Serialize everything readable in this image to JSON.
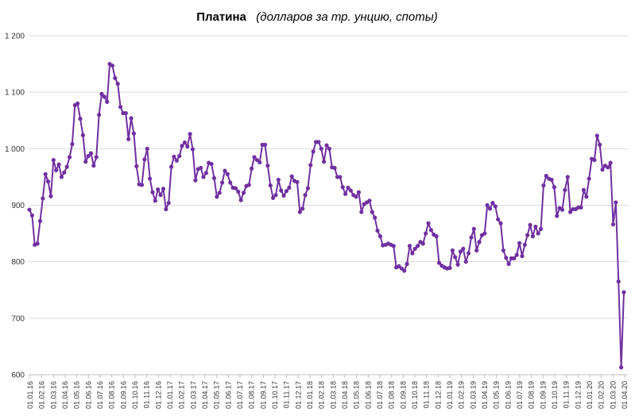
{
  "chart_data": {
    "type": "line",
    "title": "Платина",
    "subtitle": "(долларов за тр. унцию, споты)",
    "xlabel": "",
    "ylabel": "",
    "ylim": [
      600,
      1200
    ],
    "yticks": [
      "600",
      "700",
      "800",
      "900",
      "1 000",
      "1 100",
      "1 200"
    ],
    "grid": true,
    "legend": "none",
    "line_color": "#7030a0",
    "x_tick_labels": [
      "01.01.16",
      "01.02.16",
      "01.03.16",
      "01.04.16",
      "01.05.16",
      "01.06.16",
      "01.07.16",
      "01.08.16",
      "01.09.16",
      "01.10.16",
      "01.11.16",
      "01.12.16",
      "01.01.17",
      "01.02.17",
      "01.03.17",
      "01.04.17",
      "01.05.17",
      "01.06.17",
      "01.07.17",
      "01.08.17",
      "01.09.17",
      "01.10.17",
      "01.11.17",
      "01.12.17",
      "01.01.18",
      "01.02.18",
      "01.03.18",
      "01.04.18",
      "01.05.18",
      "01.06.18",
      "01.07.18",
      "01.08.18",
      "01.09.18",
      "01.10.18",
      "01.11.18",
      "01.12.18",
      "01.01.19",
      "01.02.19",
      "01.03.19",
      "01.04.19",
      "01.05.19",
      "01.06.19",
      "01.07.19",
      "01.08.19",
      "01.09.19",
      "01.10.19",
      "01.11.19",
      "01.12.19",
      "01.01.20",
      "01.02.20",
      "01.03.20",
      "01.04.20"
    ],
    "series": [
      {
        "values": [
          892,
          882,
          830,
          832,
          872,
          912,
          955,
          942,
          916,
          980,
          962,
          972,
          950,
          958,
          968,
          985,
          1008,
          1077,
          1080,
          1053,
          1024,
          977,
          987,
          992,
          970,
          985,
          1060,
          1097,
          1092,
          1083,
          1150,
          1147,
          1125,
          1115,
          1074,
          1063,
          1063,
          1017,
          1054,
          1027,
          969,
          937,
          936,
          981,
          1000,
          947,
          923,
          908,
          928,
          918,
          929,
          893,
          904,
          968,
          986,
          979,
          987,
          1005,
          1011,
          1004,
          1026,
          999,
          944,
          964,
          966,
          950,
          957,
          975,
          973,
          948,
          915,
          922,
          940,
          961,
          955,
          940,
          931,
          930,
          924,
          909,
          922,
          934,
          936,
          965,
          985,
          980,
          976,
          1007,
          1007,
          970,
          935,
          913,
          918,
          945,
          926,
          917,
          925,
          931,
          951,
          943,
          941,
          888,
          894,
          918,
          930,
          971,
          995,
          1012,
          1012,
          1000,
          977,
          1006,
          1000,
          967,
          966,
          950,
          950,
          932,
          920,
          931,
          926,
          918,
          915,
          923,
          888,
          902,
          905,
          908,
          888,
          878,
          855,
          845,
          829,
          830,
          832,
          830,
          828,
          790,
          792,
          788,
          784,
          796,
          828,
          815,
          823,
          828,
          835,
          832,
          850,
          868,
          856,
          848,
          845,
          798,
          793,
          790,
          788,
          789,
          820,
          808,
          795,
          818,
          823,
          800,
          815,
          843,
          858,
          820,
          835,
          847,
          850,
          900,
          894,
          904,
          898,
          875,
          868,
          820,
          807,
          796,
          806,
          806,
          812,
          833,
          810,
          830,
          847,
          865,
          845,
          862,
          850,
          858,
          935,
          952,
          947,
          945,
          932,
          881,
          895,
          892,
          927,
          950,
          888,
          893,
          893,
          896,
          896,
          927,
          915,
          947,
          982,
          980,
          1023,
          1007,
          963,
          970,
          967,
          975,
          866,
          905,
          765,
          613,
          746
        ]
      }
    ]
  }
}
